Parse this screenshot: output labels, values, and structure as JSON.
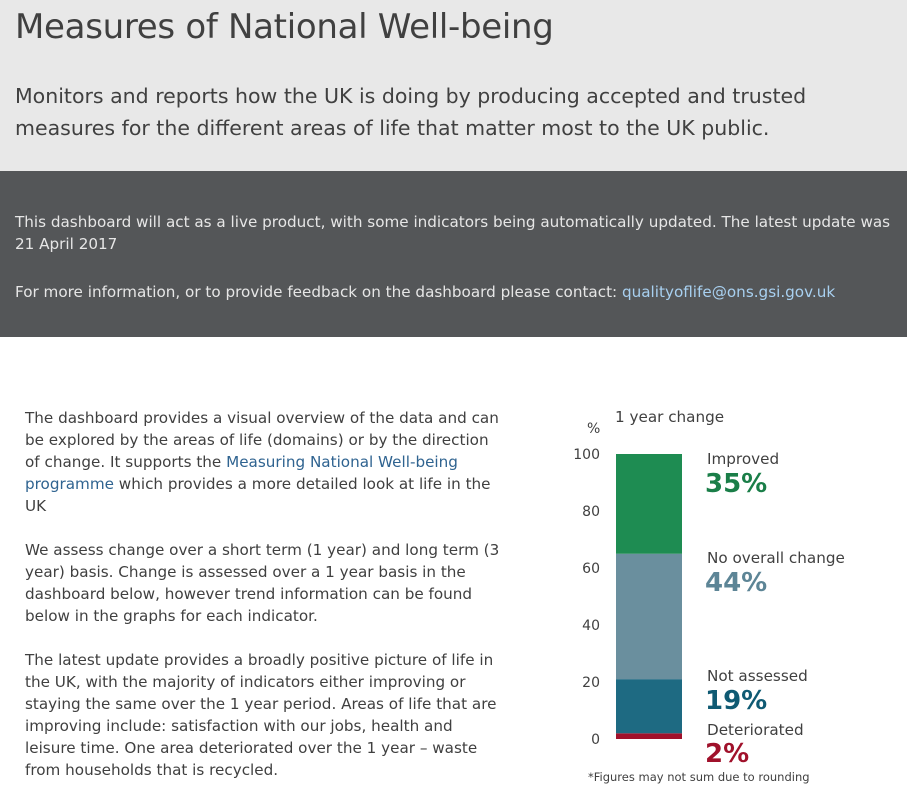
{
  "header": {
    "title": "Measures of National Well-being",
    "subtitle": "Monitors and reports how the UK is doing by producing accepted and trusted measures for the different areas of life that matter most to the UK public."
  },
  "notice": {
    "update_text": "This dashboard will act as a live product, with some indicators being automatically updated. The latest update was 21 April 2017",
    "contact_text": "For more information, or to provide feedback on the dashboard please contact: ",
    "contact_email": "qualityoflife@ons.gsi.gov.uk"
  },
  "intro": {
    "p1_before": "The dashboard provides a visual overview of the data and can be explored by the areas of life (domains) or by the direction of change. It supports the ",
    "p1_link": "Measuring National Well-being programme",
    "p1_after": " which provides a more detailed look at life in the UK",
    "p2": "We assess change over a short term (1 year) and long term (3 year) basis. Change is assessed over a 1 year basis in the dashboard below, however trend information can be found below in the graphs for each indicator.",
    "p3": "The latest update provides a broadly positive picture of life in the UK, with the majority of indicators either improving or staying the same over the 1 year period. Areas of life that are improving include: satisfaction with our jobs, health and leisure time. One area deteriorated over the 1 year – waste from households that is recycled."
  },
  "chart_data": {
    "type": "bar",
    "stacked": true,
    "title": "1 year change",
    "ylabel": "%",
    "ylim": [
      0,
      100
    ],
    "yticks": [
      "0",
      "20",
      "40",
      "60",
      "80",
      "100"
    ],
    "series": [
      {
        "name": "Deteriorated",
        "value": 2,
        "label": "2%",
        "color": "#a0112b"
      },
      {
        "name": "Not assessed",
        "value": 19,
        "label": "19%",
        "color": "#1e6a82"
      },
      {
        "name": "No overall change",
        "value": 44,
        "label": "44%",
        "color": "#6a8f9e"
      },
      {
        "name": "Improved",
        "value": 35,
        "label": "35%",
        "color": "#1e8c52"
      }
    ],
    "value_label_colors": {
      "Deteriorated": "#a0112b",
      "Not assessed": "#0f5a73",
      "No overall change": "#5d8596",
      "Improved": "#1a7e48"
    },
    "footnote": "*Figures may not sum due to rounding"
  }
}
